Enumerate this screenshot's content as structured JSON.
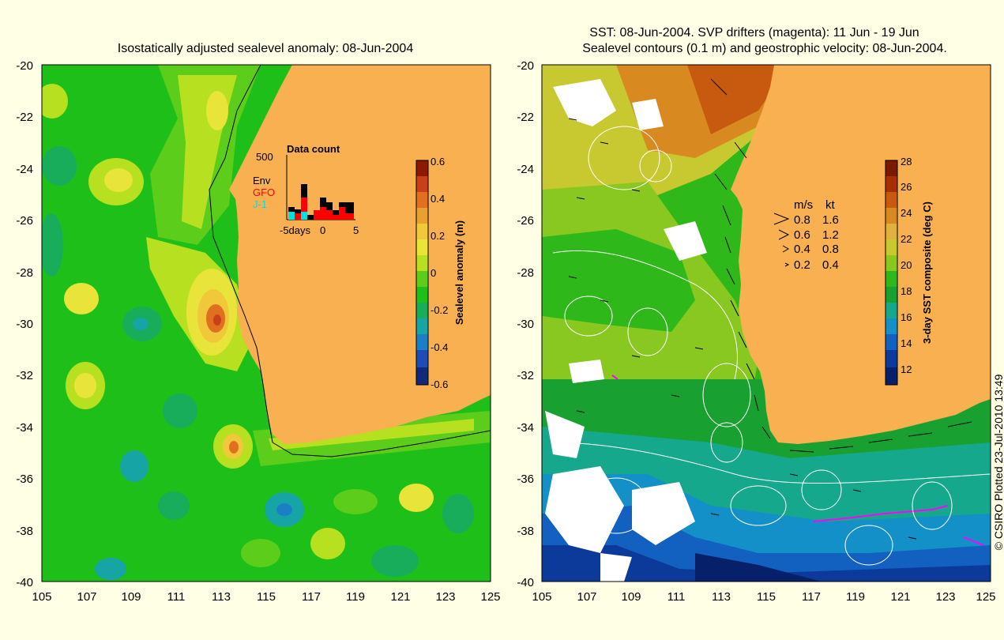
{
  "left_map": {
    "title": "Isostatically adjusted sealevel anomaly: 08-Jun-2004",
    "x_ticks": [
      "105",
      "107",
      "109",
      "111",
      "113",
      "115",
      "117",
      "119",
      "121",
      "123",
      "125"
    ],
    "y_ticks": [
      "-20",
      "-22",
      "-24",
      "-26",
      "-28",
      "-30",
      "-32",
      "-34",
      "-36",
      "-38",
      "-40"
    ],
    "colorbar": {
      "label": "Sealevel anomaly (m)",
      "ticks": [
        "0.6",
        "0.4",
        "0.2",
        "0",
        "-0.2",
        "-0.4",
        "-0.6"
      ],
      "colors": [
        "#8b1a00",
        "#c8401a",
        "#e07020",
        "#e8a030",
        "#f0c83a",
        "#e8e43a",
        "#b6e020",
        "#5ccd1a",
        "#1fbf1a",
        "#18ad5a",
        "#17a4a4",
        "#1b7fc8",
        "#1c4cb6",
        "#102a7a"
      ]
    },
    "data_count": {
      "title": "Data count",
      "ymax_label": "500",
      "legend_env": "Env",
      "legend_gfo": "GFO",
      "legend_j1": "J-1",
      "x_label_left": "-5days",
      "x_label_mid": "0",
      "x_label_right": "5",
      "colors": {
        "env": "#000000",
        "gfo": "#ff0000",
        "j1": "#00e0e0"
      }
    }
  },
  "right_map": {
    "title_line1": "SST: 08-Jun-2004. SVP drifters (magenta): 11 Jun - 19 Jun",
    "title_line2": "Sealevel contours (0.1 m) and geostrophic velocity: 08-Jun-2004.",
    "x_ticks": [
      "105",
      "107",
      "109",
      "111",
      "113",
      "115",
      "117",
      "119",
      "121",
      "123",
      "125"
    ],
    "y_ticks": [
      "-20",
      "-22",
      "-24",
      "-26",
      "-28",
      "-30",
      "-32",
      "-34",
      "-36",
      "-38",
      "-40"
    ],
    "colorbar": {
      "label": "3-day SST composite (deg C)",
      "ticks": [
        "28",
        "26",
        "24",
        "22",
        "20",
        "18",
        "16",
        "14",
        "12"
      ],
      "colors": [
        "#7a1a00",
        "#a83000",
        "#c85a10",
        "#d88a20",
        "#e0b040",
        "#c8c830",
        "#88c820",
        "#2fb81a",
        "#18a030",
        "#16a88c",
        "#1490c8",
        "#1260c0",
        "#0c3a9a",
        "#07206a"
      ]
    },
    "velocity_legend": {
      "header_ms": "m/s",
      "header_kt": "kt",
      "rows": [
        {
          "ms": "0.8",
          "kt": "1.6"
        },
        {
          "ms": "0.6",
          "kt": "1.2"
        },
        {
          "ms": "0.4",
          "kt": "0.8"
        },
        {
          "ms": "0.2",
          "kt": "0.4"
        }
      ]
    }
  },
  "credit": "© CSIRO Plotted 23-Jul-2010 13:49",
  "colors": {
    "background": "#ffffe6",
    "land": "#f8b050",
    "ocean_green": "#1fbf1a",
    "drifter": "#ff00ff"
  }
}
